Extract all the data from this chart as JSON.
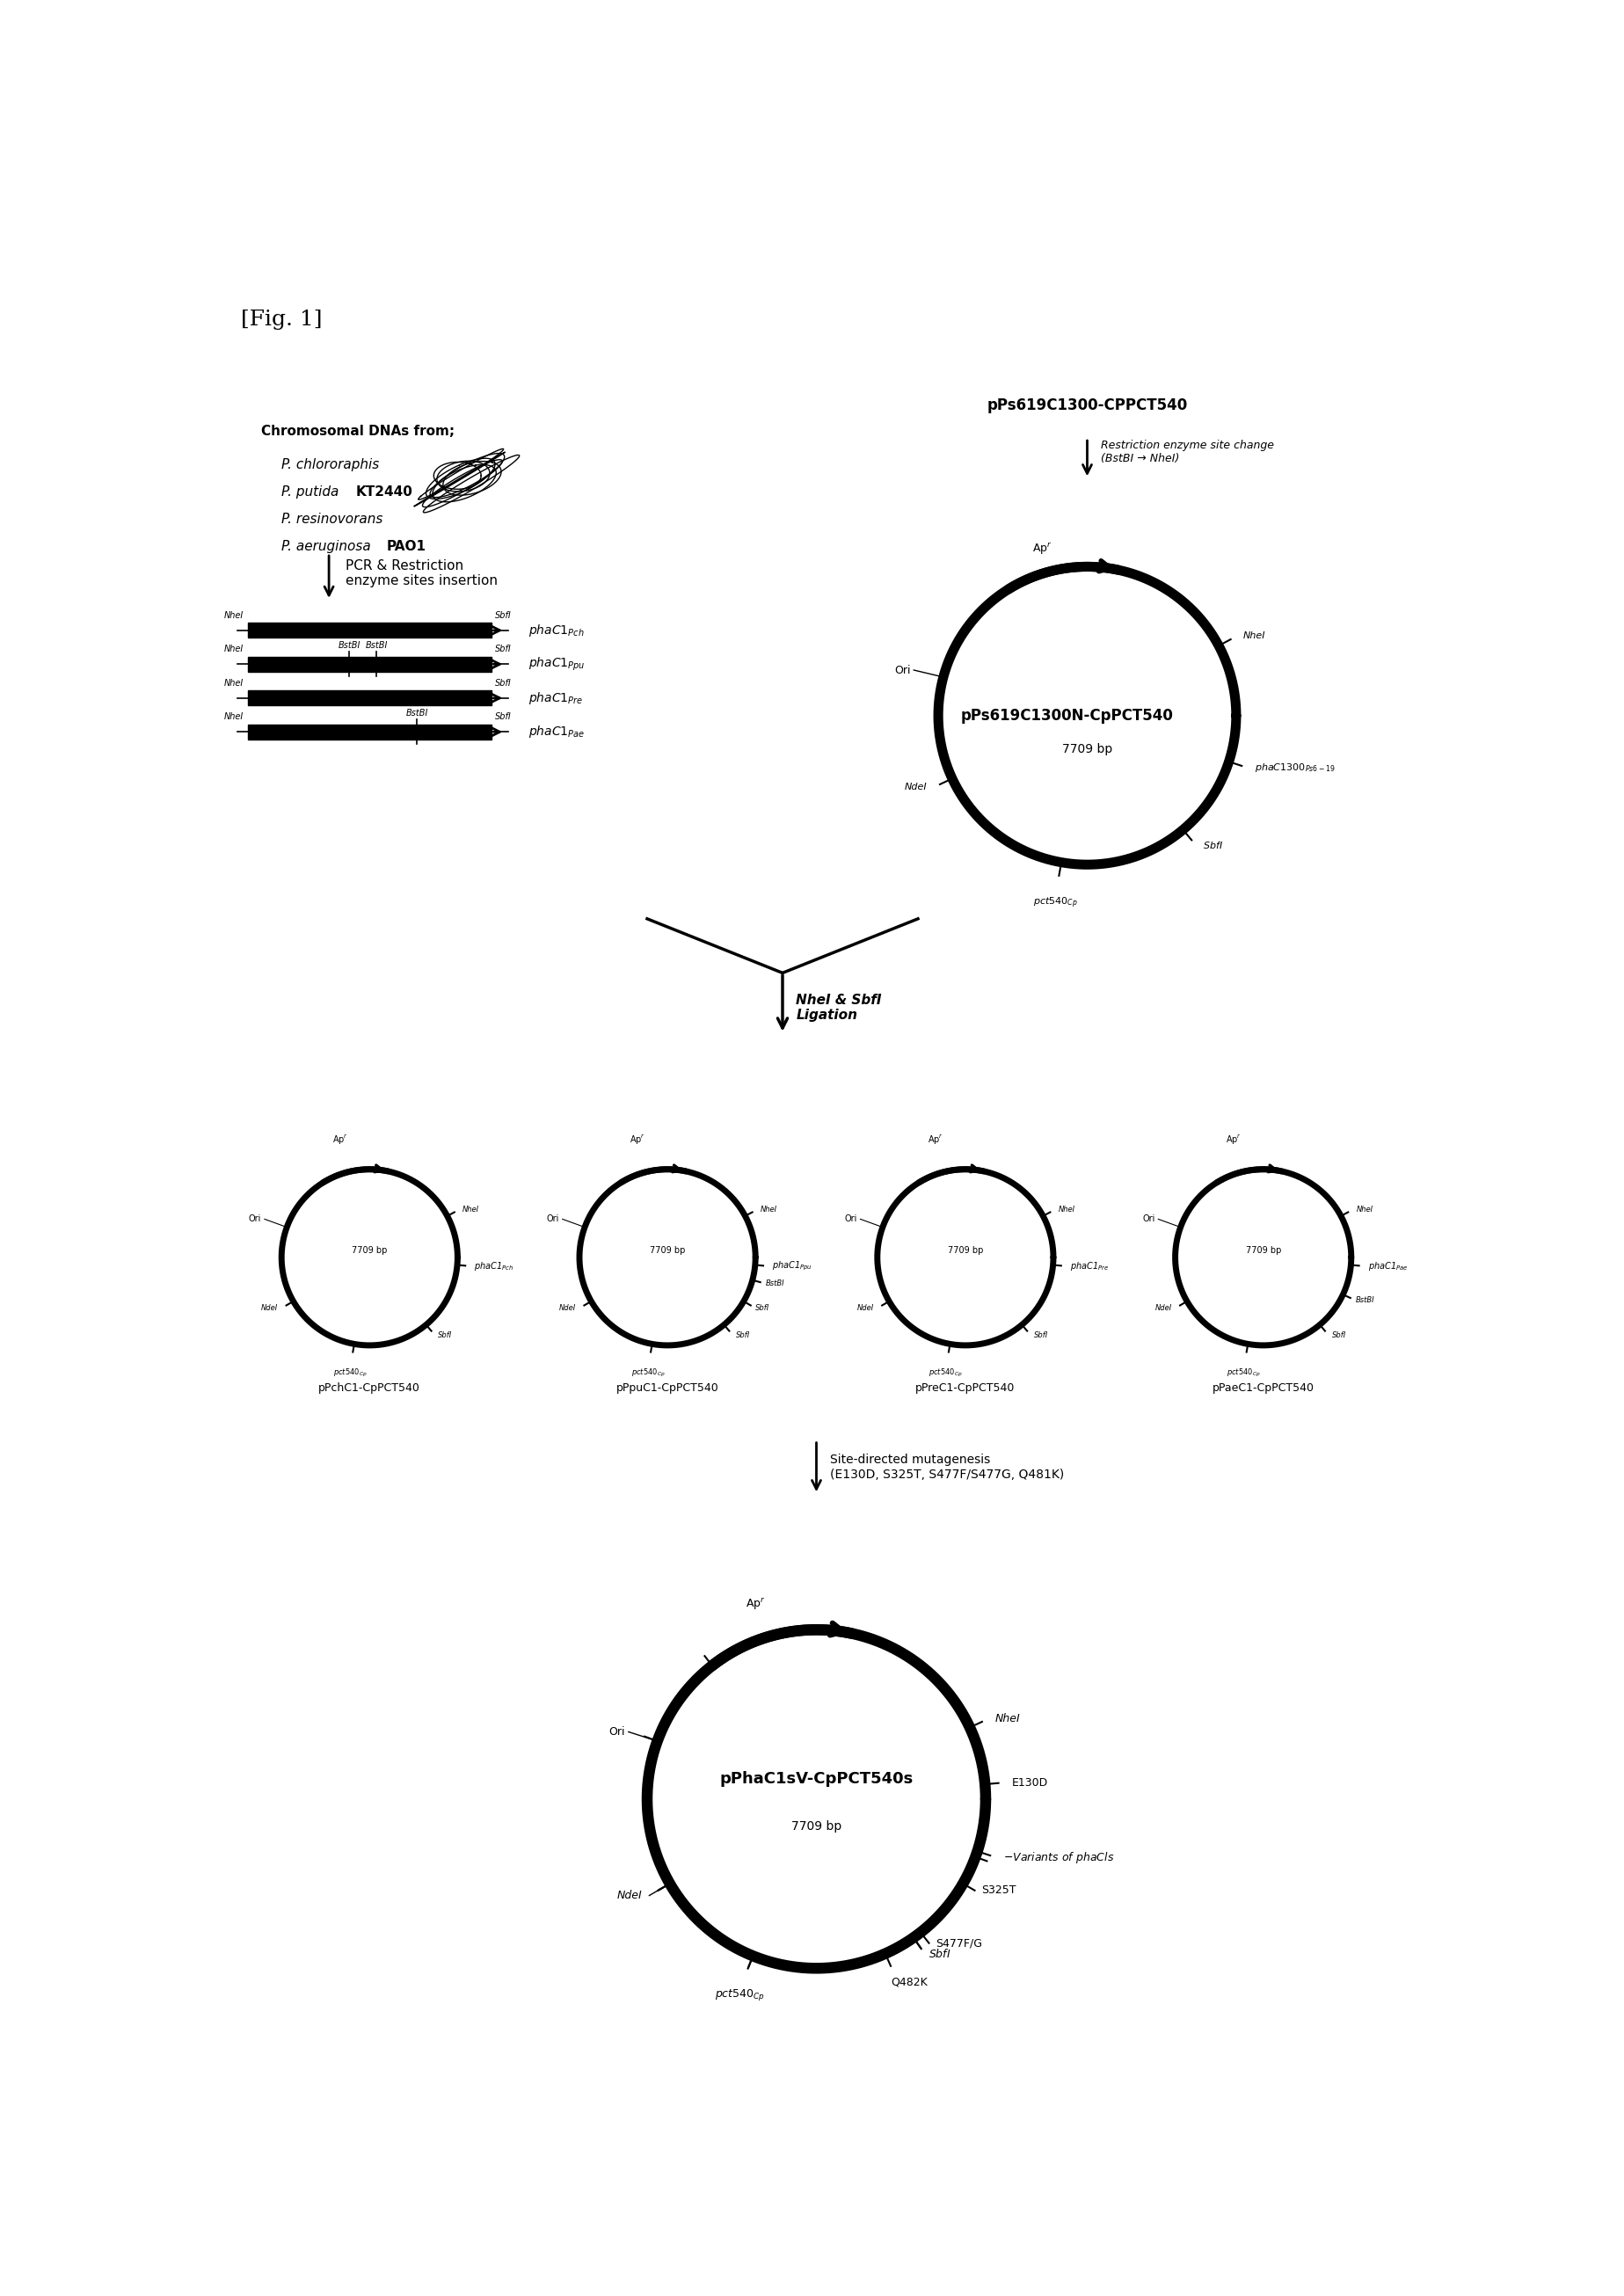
{
  "fig_label": "[Fig. 1]",
  "background_color": "#ffffff",
  "fig_width": 18.47,
  "fig_height": 26.11,
  "section1_title": "Chromosomal DNAs from;",
  "section1_organisms": [
    "P. chlororaphis",
    "P. putida KT2440",
    "P. resinovorans",
    "P. aeruginosa PAO1"
  ],
  "pcr_label": "PCR & Restriction\nenzyme sites insertion",
  "ligation_label": "NheI & SbfI\nLigation",
  "top_plasmid_name": "pPs619C1300-CPPCT540",
  "restriction_label": "Restriction enzyme site change\n(BstBI → NheI)",
  "top_plasmid_inner": "pPs619C1300N-CpPCT540",
  "top_plasmid_bp": "7709 bp",
  "mutagenesis_label": "Site-directed mutagenesis\n(E130D, S325T, S477F/S477G, Q481K)",
  "small_plasmids": [
    {
      "name": "pPchC1-CpPCT540",
      "bp": "7709 bp",
      "label": "phaC1$_{Pch}$",
      "extra_sites": []
    },
    {
      "name": "pPpuC1-CpPCT540",
      "bp": "7709 bp",
      "label": "phaC1$_{Ppu}$",
      "extra_sites": [
        "BstBI",
        "SbfI"
      ]
    },
    {
      "name": "pPreC1-CpPCT540",
      "bp": "7709 bp",
      "label": "phaC1$_{Pre}$",
      "extra_sites": []
    },
    {
      "name": "pPaeC1-CpPCT540",
      "bp": "7709 bp",
      "label": "phaC1$_{Pae}$",
      "extra_sites": [
        "BstBI"
      ]
    }
  ],
  "bottom_plasmid_inner": "pPhaC1sV-CpPCT540s",
  "bottom_plasmid_bp": "7709 bp"
}
